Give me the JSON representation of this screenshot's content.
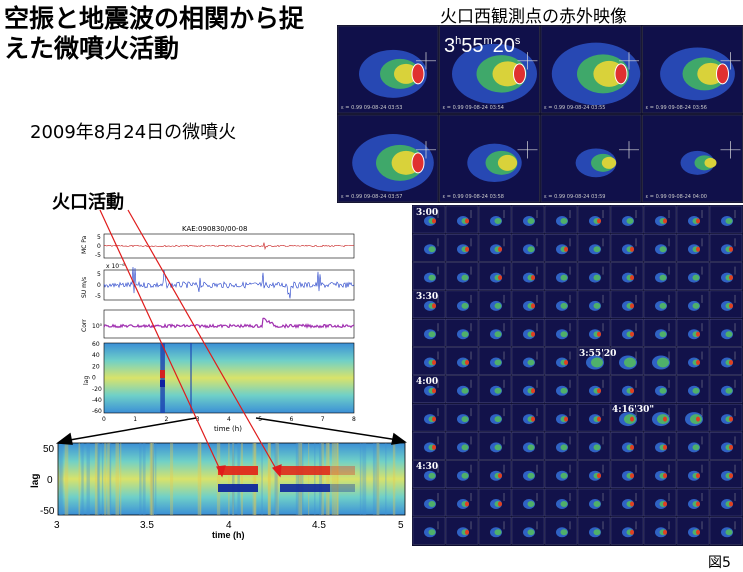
{
  "title": "空振と地震波の相関から捉えた微噴火活動",
  "subtitle": "2009年8月24日の微噴火",
  "volcano_activity_label": "火口活動",
  "figure_label": "図5",
  "ir_panel": {
    "title": "火口西観測点の赤外映像",
    "time_overlay": "3h55m20s",
    "frame_captions": [
      "ε = 0.99  09-08-24 03:53",
      "ε = 0.99  09-08-24 03:54",
      "ε = 0.99  09-08-24 03:55",
      "ε = 0.99  09-08-24 03:56",
      "ε = 0.99  09-08-24 03:57",
      "ε = 0.99  09-08-24 03:58",
      "ε = 0.99  09-08-24 03:59",
      "ε = 0.99  09-08-24 04:00"
    ]
  },
  "grid_panel": {
    "row_labels": [
      "3:00",
      "3:30",
      "4:00",
      "4:30"
    ],
    "highlight_labels": [
      "3:55'20",
      "4:16'30\""
    ]
  },
  "small_plot": {
    "header": "KAE:090830/00-08",
    "panel_labels": [
      "MC Pa",
      "SU m/s",
      "Corr",
      "lag"
    ],
    "scale_labels": [
      "x 10⁻⁶",
      "10⁰"
    ],
    "mc_ticks": [
      "5",
      "0",
      "-5"
    ],
    "su_ticks": [
      "5",
      "0",
      "-5"
    ],
    "corr_ticks": [
      "10⁰"
    ],
    "lag_ticks": [
      "60",
      "40",
      "20",
      "0",
      "-20",
      "-40",
      "-60"
    ],
    "x_ticks": [
      "0",
      "1",
      "2",
      "3",
      "4",
      "5",
      "6",
      "7",
      "8"
    ],
    "xlabel": "time (h)"
  },
  "zoom_plot": {
    "ylabel": "lag",
    "y_ticks": [
      "50",
      "0",
      "-50"
    ],
    "x_ticks": [
      "3",
      "3.5",
      "4",
      "4.5",
      "5"
    ],
    "xlabel": "time (h)",
    "xlim": [
      3,
      5
    ]
  }
}
